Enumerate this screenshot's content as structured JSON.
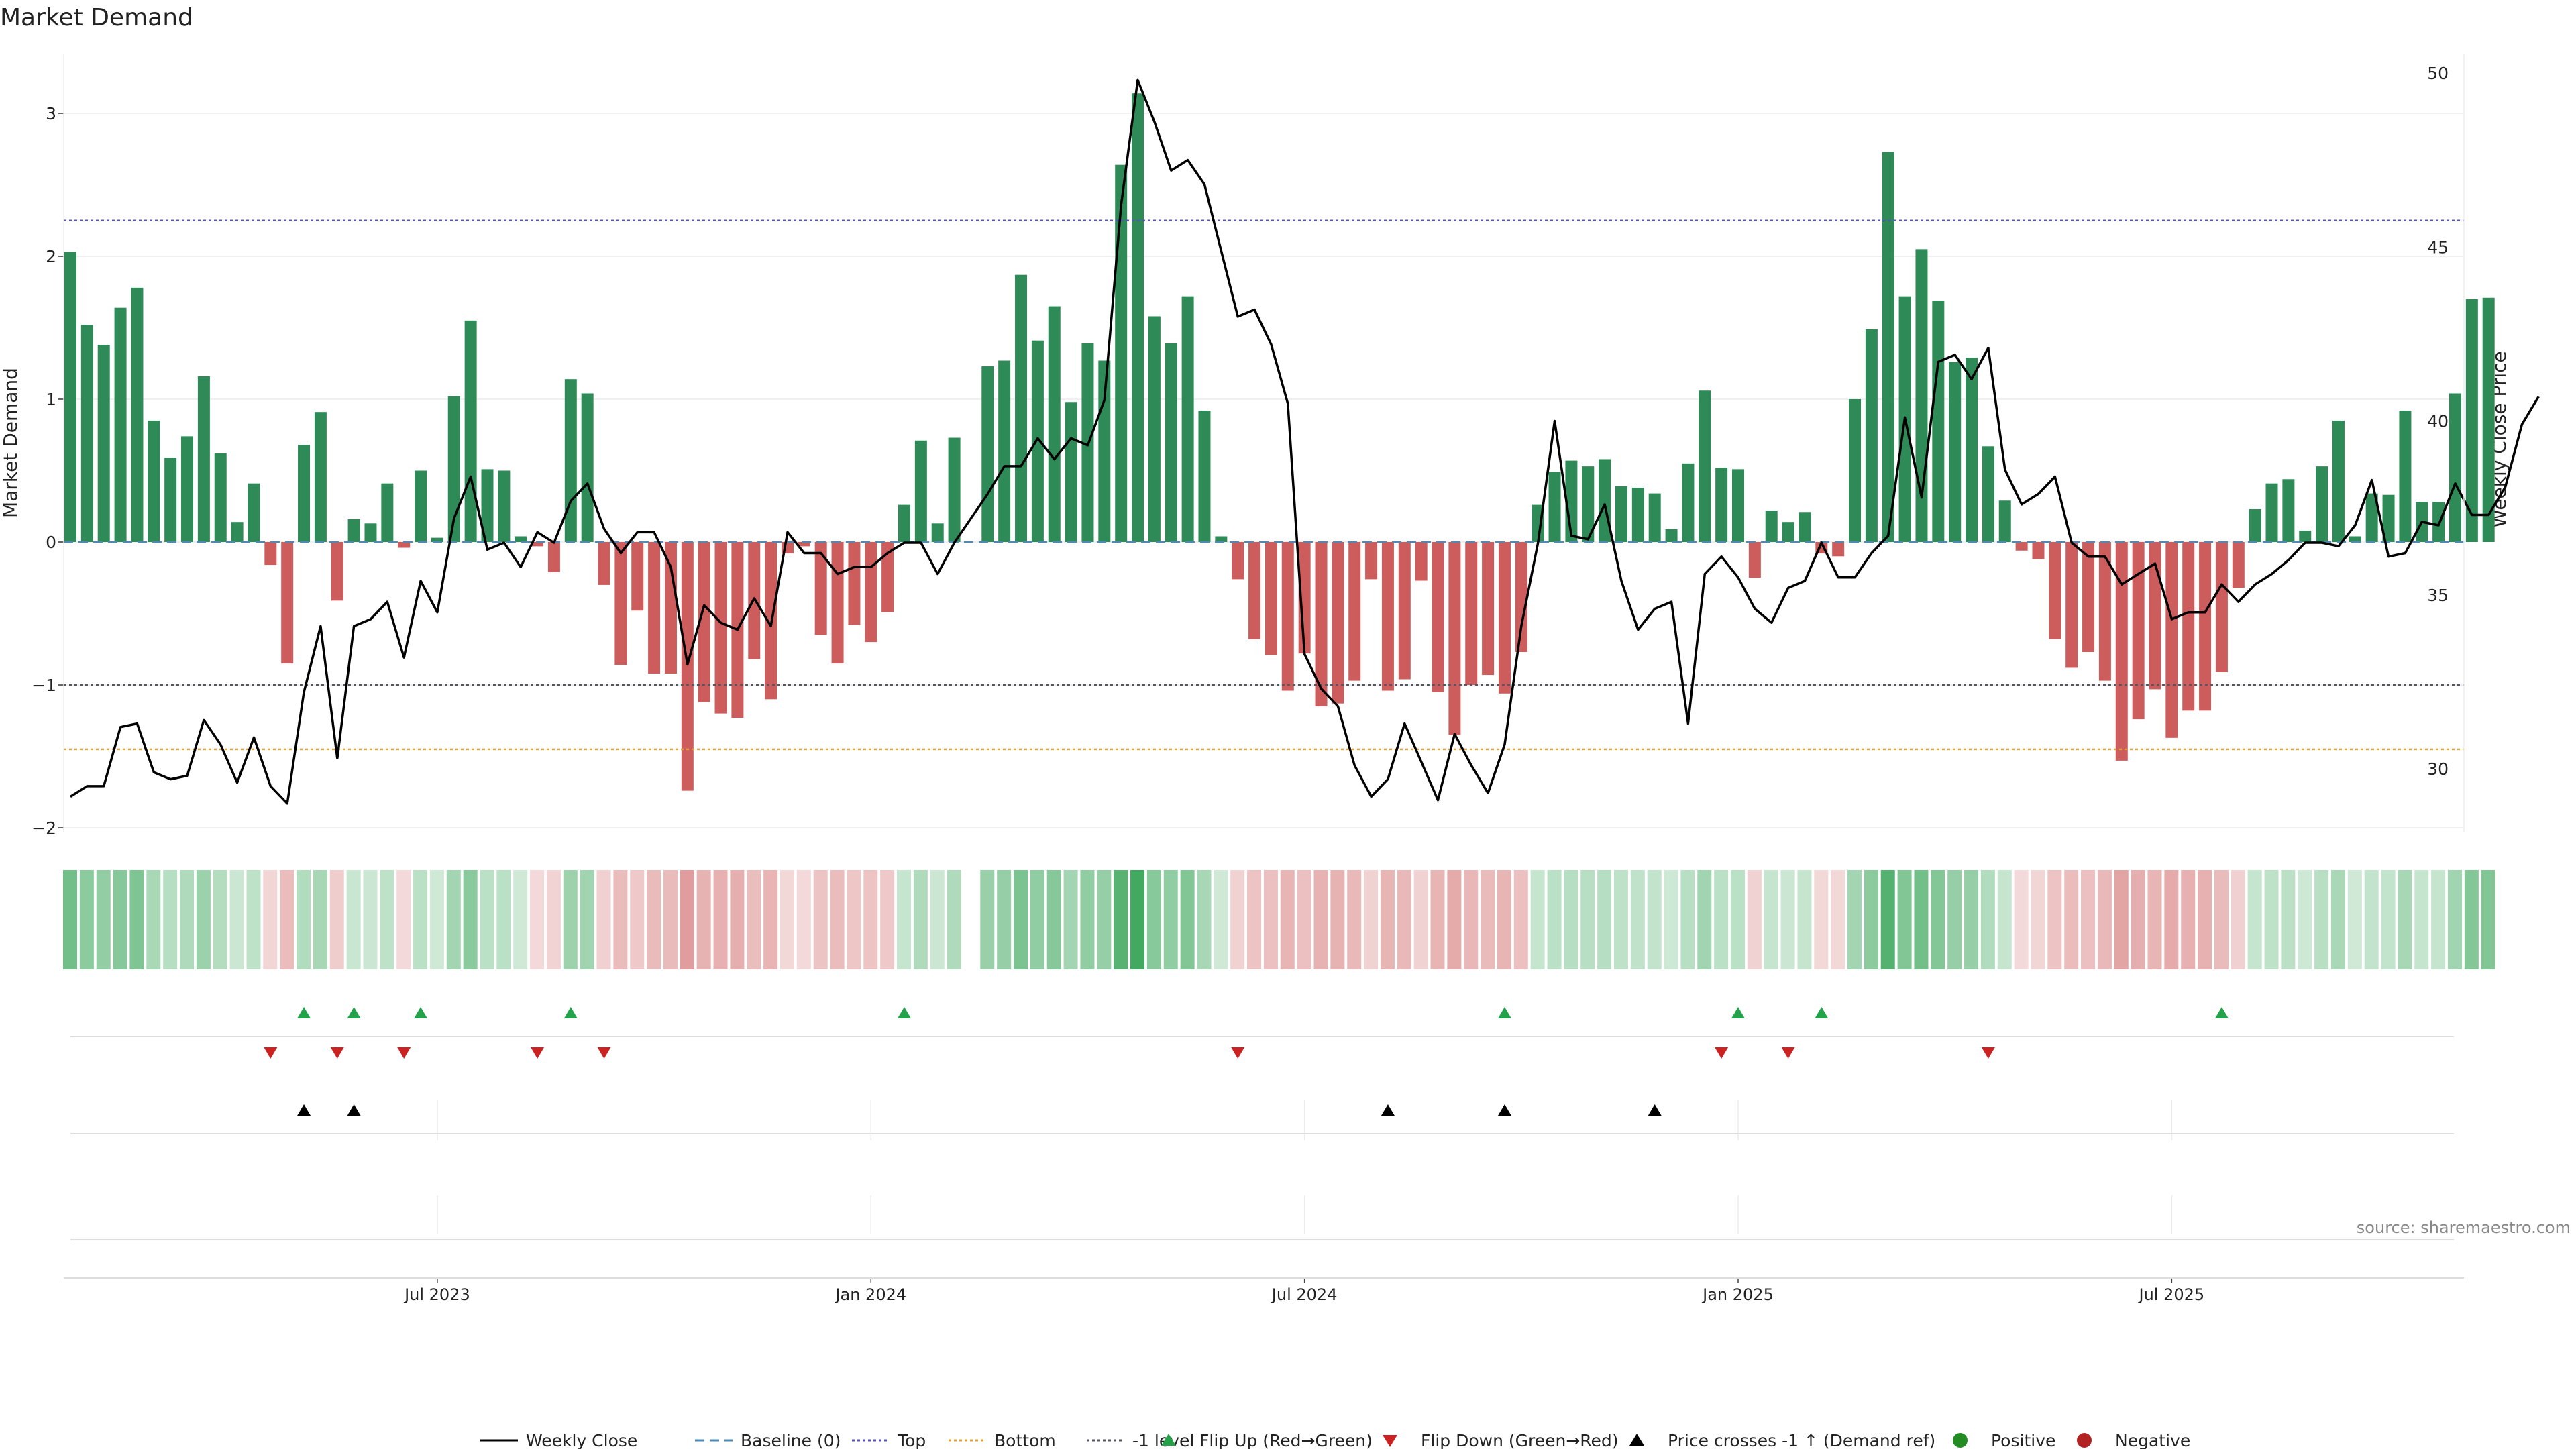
{
  "chart_data": {
    "type": "bar",
    "title": "Market Demand",
    "ylabel": "Market Demand",
    "y2label": "Weekly Close Price",
    "ylim": [
      -2.0,
      3.35
    ],
    "y2lim": [
      27.2,
      50.0
    ],
    "yticks": [
      3,
      2,
      1,
      0,
      -1,
      -2
    ],
    "ytick_labels": [
      "3",
      "2",
      "1",
      "0",
      "−1",
      "−2"
    ],
    "y2ticks": [
      50,
      45,
      40,
      35,
      30
    ],
    "y2tick_labels": [
      "50",
      "45",
      "40",
      "35",
      "30"
    ],
    "xtick_positions": [
      22,
      48,
      74,
      100,
      126
    ],
    "xtick_labels": [
      "Jul 2023",
      "Jan 2024",
      "Jul 2024",
      "Jan 2025",
      "Jul 2025"
    ],
    "reference_lines": {
      "top": 2.25,
      "bottom": -1.45,
      "minus_one": -1.0,
      "baseline": 0
    },
    "missing_weeks": [
      54
    ],
    "series": [
      {
        "name": "Market Demand",
        "values": [
          2.03,
          1.52,
          1.38,
          1.64,
          1.78,
          0.85,
          0.59,
          0.74,
          1.16,
          0.62,
          0.14,
          0.41,
          -0.16,
          -0.85,
          0.68,
          0.91,
          -0.41,
          0.16,
          0.13,
          0.41,
          -0.04,
          0.5,
          0.03,
          1.02,
          1.55,
          0.51,
          0.5,
          0.04,
          -0.03,
          -0.21,
          1.14,
          1.04,
          -0.3,
          -0.86,
          -0.48,
          -0.92,
          -0.92,
          -1.74,
          -1.12,
          -1.2,
          -1.23,
          -0.82,
          -1.1,
          -0.08,
          -0.03,
          -0.65,
          -0.85,
          -0.58,
          -0.7,
          -0.49,
          0.26,
          0.71,
          0.13,
          0.73,
          0,
          1.23,
          1.27,
          1.87,
          1.41,
          1.65,
          0.98,
          1.39,
          1.27,
          2.64,
          3.14,
          1.58,
          1.39,
          1.72,
          0.92,
          0.04,
          -0.26,
          -0.68,
          -0.79,
          -1.04,
          -0.78,
          -1.15,
          -1.13,
          -0.97,
          -0.26,
          -1.04,
          -0.96,
          -0.27,
          -1.05,
          -1.35,
          -1.0,
          -0.93,
          -1.06,
          -0.77,
          0.26,
          0.49,
          0.57,
          0.53,
          0.58,
          0.39,
          0.38,
          0.34,
          0.09,
          0.55,
          1.06,
          0.52,
          0.51,
          -0.25,
          0.22,
          0.14,
          0.21,
          -0.08,
          -0.1,
          1.0,
          1.49,
          2.73,
          1.72,
          2.05,
          1.69,
          1.26,
          1.29,
          0.67,
          0.29,
          -0.06,
          -0.12,
          -0.68,
          -0.88,
          -0.77,
          -0.97,
          -1.53,
          -1.24,
          -1.03,
          -1.37,
          -1.18,
          -1.18,
          -0.91,
          -0.32,
          0.23,
          0.41,
          0.44,
          0.08,
          0.53,
          0.85,
          0.04,
          0.34,
          0.33,
          0.92,
          0.28,
          0.28,
          1.04,
          1.7,
          1.71
        ]
      },
      {
        "name": "Weekly Close",
        "values": [
          29.2,
          29.5,
          29.5,
          31.2,
          31.3,
          29.9,
          29.7,
          29.8,
          31.4,
          30.7,
          29.6,
          30.9,
          29.5,
          29.0,
          32.2,
          34.1,
          30.3,
          34.1,
          34.3,
          34.8,
          33.2,
          35.4,
          34.5,
          37.2,
          38.4,
          36.3,
          36.5,
          35.8,
          36.8,
          36.5,
          37.7,
          38.2,
          36.9,
          36.2,
          36.8,
          36.8,
          35.8,
          33.0,
          34.7,
          34.2,
          34.0,
          34.9,
          34.1,
          36.8,
          36.2,
          36.2,
          35.6,
          35.8,
          35.8,
          36.2,
          36.5,
          36.5,
          35.6,
          36.5,
          37.2,
          37.9,
          38.7,
          38.7,
          39.5,
          38.9,
          39.5,
          39.3,
          40.6,
          46.2,
          49.8,
          48.6,
          47.2,
          47.5,
          46.8,
          44.9,
          43.0,
          43.2,
          42.2,
          40.5,
          33.3,
          32.3,
          31.8,
          30.1,
          29.2,
          29.7,
          31.3,
          30.2,
          29.1,
          31.0,
          30.1,
          29.3,
          30.7,
          34.1,
          36.5,
          40.0,
          36.7,
          36.6,
          37.6,
          35.4,
          34.0,
          34.6,
          34.8,
          31.3,
          35.6,
          36.1,
          35.5,
          34.6,
          34.2,
          35.2,
          35.4,
          36.5,
          35.5,
          35.5,
          36.2,
          36.7,
          40.1,
          37.8,
          41.7,
          41.9,
          41.2,
          42.1,
          38.6,
          37.6,
          37.9,
          38.4,
          36.5,
          36.1,
          36.1,
          35.3,
          35.6,
          35.9,
          34.3,
          34.5,
          34.5,
          35.3,
          34.8,
          35.3,
          35.6,
          36.0,
          36.5,
          36.5,
          36.4,
          37.0,
          38.3,
          36.1,
          36.2,
          37.1,
          37.0,
          38.2,
          37.3,
          37.3,
          38.1,
          39.9,
          40.7
        ]
      }
    ],
    "markers": {
      "flip_up": [
        14,
        17,
        21,
        30,
        50,
        86,
        100,
        105,
        129
      ],
      "flip_down": [
        12,
        16,
        20,
        28,
        32,
        70,
        99,
        103,
        115
      ],
      "price_cross": [
        14,
        17,
        79,
        86,
        95
      ]
    },
    "legend": [
      "Weekly Close",
      "Baseline (0)",
      "Top",
      "Bottom",
      "-1 level",
      "Flip Up (Red→Green)",
      "Flip Down (Green→Red)",
      "Price crosses -1 ↑ (Demand ref)",
      "Positive",
      "Negative"
    ],
    "legend_position": "bottom-center",
    "source": "source: sharemaestro.com"
  },
  "colors": {
    "positive": "#2e8b57",
    "negative": "#cd5c5c",
    "price_line": "#000000",
    "top_line": "#5555bb",
    "bottom_line": "#e0a030",
    "minus_one_line": "#555566",
    "baseline_line": "#4a8ab8",
    "flip_up": "#22a34a",
    "flip_down": "#cc2222",
    "price_cross": "#000000",
    "legend_positive": "#228b22",
    "legend_negative": "#b22222"
  }
}
